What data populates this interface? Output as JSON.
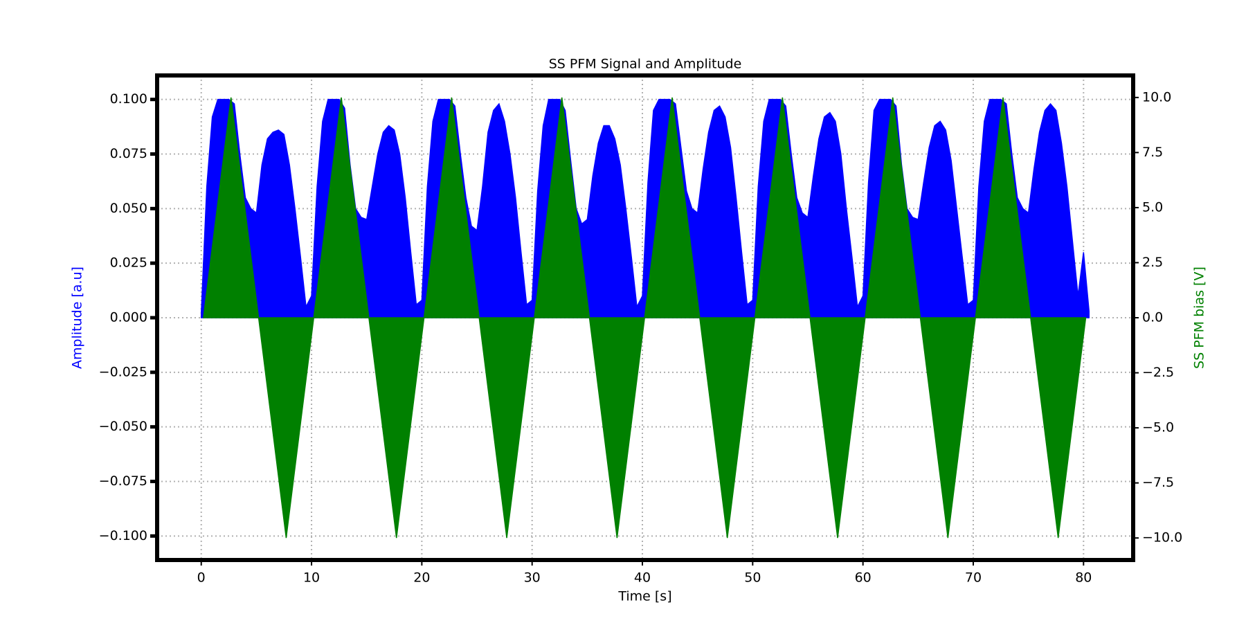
{
  "chart_data": {
    "type": "area",
    "title": "SS PFM Signal and Amplitude",
    "xlabel": "Time [s]",
    "ylabel": "Amplitude [a.u]",
    "y2label": "SS PFM bias [V]",
    "xlim": [
      -4,
      84.5
    ],
    "xticks": [
      0,
      10,
      20,
      30,
      40,
      50,
      60,
      70,
      80
    ],
    "ylim": [
      -0.111,
      0.111
    ],
    "yticks": [
      {
        "value": -0.1,
        "label": "−0.100"
      },
      {
        "value": -0.075,
        "label": "−0.075"
      },
      {
        "value": -0.05,
        "label": "−0.050"
      },
      {
        "value": -0.025,
        "label": "−0.025"
      },
      {
        "value": 0,
        "label": "0.000"
      },
      {
        "value": 0.025,
        "label": "0.025"
      },
      {
        "value": 0.05,
        "label": "0.050"
      },
      {
        "value": 0.075,
        "label": "0.075"
      },
      {
        "value": 0.1,
        "label": "0.100"
      }
    ],
    "y2lim": [
      -11,
      11
    ],
    "y2ticks": [
      {
        "value": -10,
        "label": "−10.0"
      },
      {
        "value": -7.5,
        "label": "−7.5"
      },
      {
        "value": -5,
        "label": "−5.0"
      },
      {
        "value": -2.5,
        "label": "−2.5"
      },
      {
        "value": 0,
        "label": "0.0"
      },
      {
        "value": 2.5,
        "label": "2.5"
      },
      {
        "value": 5,
        "label": "5.0"
      },
      {
        "value": 7.5,
        "label": "7.5"
      },
      {
        "value": 10,
        "label": "10.0"
      }
    ],
    "grid": true,
    "series": [
      {
        "name": "Amplitude",
        "color": "#0000ff",
        "axis": "y",
        "x": [
          0,
          0.5,
          1,
          1.5,
          2,
          2.5,
          3,
          3.5,
          4,
          4.5,
          5,
          5.5,
          6,
          6.5,
          7,
          7.5,
          8,
          8.5,
          9,
          9.5,
          10,
          10.5,
          11,
          11.5,
          12,
          12.5,
          13,
          13.5,
          14,
          14.5,
          15,
          15.5,
          16,
          16.5,
          17,
          17.5,
          18,
          18.5,
          19,
          19.5,
          20,
          20.5,
          21,
          21.5,
          22,
          22.5,
          23,
          23.5,
          24,
          24.5,
          25,
          25.5,
          26,
          26.5,
          27,
          27.5,
          28,
          28.5,
          29,
          29.5,
          30,
          30.5,
          31,
          31.5,
          32,
          32.5,
          33,
          33.5,
          34,
          34.5,
          35,
          35.5,
          36,
          36.5,
          37,
          37.5,
          38,
          38.5,
          39,
          39.5,
          40,
          40.5,
          41,
          41.5,
          42,
          42.5,
          43,
          43.5,
          44,
          44.5,
          45,
          45.5,
          46,
          46.5,
          47,
          47.5,
          48,
          48.5,
          49,
          49.5,
          50,
          50.5,
          51,
          51.5,
          52,
          52.5,
          53,
          53.5,
          54,
          54.5,
          55,
          55.5,
          56,
          56.5,
          57,
          57.5,
          58,
          58.5,
          59,
          59.5,
          60,
          60.5,
          61,
          61.5,
          62,
          62.5,
          63,
          63.5,
          64,
          64.5,
          65,
          65.5,
          66,
          66.5,
          67,
          67.5,
          68,
          68.5,
          69,
          69.5,
          70,
          70.5,
          71,
          71.5,
          72,
          72.5,
          73,
          73.5,
          74,
          74.5,
          75,
          75.5,
          76,
          76.5,
          77,
          77.5,
          78,
          78.5,
          79,
          79.5,
          80,
          80.5
        ],
        "values": [
          0.002,
          0.06,
          0.092,
          0.1,
          0.1,
          0.1,
          0.098,
          0.075,
          0.055,
          0.05,
          0.048,
          0.07,
          0.082,
          0.085,
          0.086,
          0.084,
          0.07,
          0.05,
          0.028,
          0.005,
          0.01,
          0.06,
          0.09,
          0.1,
          0.1,
          0.1,
          0.096,
          0.07,
          0.05,
          0.046,
          0.045,
          0.06,
          0.075,
          0.085,
          0.088,
          0.086,
          0.075,
          0.055,
          0.03,
          0.006,
          0.008,
          0.06,
          0.09,
          0.1,
          0.1,
          0.1,
          0.097,
          0.075,
          0.055,
          0.042,
          0.04,
          0.06,
          0.085,
          0.095,
          0.098,
          0.09,
          0.075,
          0.055,
          0.03,
          0.006,
          0.008,
          0.058,
          0.088,
          0.1,
          0.1,
          0.1,
          0.095,
          0.072,
          0.05,
          0.043,
          0.045,
          0.065,
          0.08,
          0.088,
          0.088,
          0.082,
          0.07,
          0.05,
          0.028,
          0.005,
          0.01,
          0.062,
          0.095,
          0.1,
          0.1,
          0.1,
          0.098,
          0.078,
          0.058,
          0.05,
          0.048,
          0.068,
          0.085,
          0.095,
          0.097,
          0.092,
          0.078,
          0.055,
          0.03,
          0.006,
          0.008,
          0.06,
          0.09,
          0.1,
          0.1,
          0.1,
          0.097,
          0.075,
          0.055,
          0.048,
          0.046,
          0.065,
          0.082,
          0.092,
          0.094,
          0.09,
          0.075,
          0.05,
          0.028,
          0.005,
          0.01,
          0.062,
          0.095,
          0.1,
          0.1,
          0.1,
          0.097,
          0.07,
          0.05,
          0.046,
          0.045,
          0.062,
          0.078,
          0.088,
          0.09,
          0.086,
          0.072,
          0.05,
          0.028,
          0.006,
          0.008,
          0.06,
          0.09,
          0.1,
          0.1,
          0.1,
          0.098,
          0.075,
          0.055,
          0.05,
          0.048,
          0.068,
          0.085,
          0.095,
          0.098,
          0.095,
          0.08,
          0.06,
          0.035,
          0.01,
          0.03,
          0.003
        ]
      },
      {
        "name": "SS PFM bias",
        "color": "#008000",
        "axis": "y2",
        "x": [
          0.2,
          2.7,
          5.2,
          7.7,
          10.2,
          12.7,
          15.2,
          17.7,
          20.2,
          22.7,
          25.2,
          27.7,
          30.2,
          32.7,
          35.2,
          37.7,
          40.2,
          42.7,
          45.2,
          47.7,
          50.2,
          52.7,
          55.2,
          57.7,
          60.2,
          62.7,
          65.2,
          67.7,
          70.2,
          72.7,
          75.2,
          77.7,
          80.2
        ],
        "values": [
          0,
          10,
          0,
          -10,
          0,
          10,
          0,
          -10,
          0,
          10,
          0,
          -10,
          0,
          10,
          0,
          -10,
          0,
          10,
          0,
          -10,
          0,
          10,
          0,
          -10,
          0,
          10,
          0,
          -10,
          0,
          10,
          0,
          -10,
          0
        ]
      }
    ]
  }
}
